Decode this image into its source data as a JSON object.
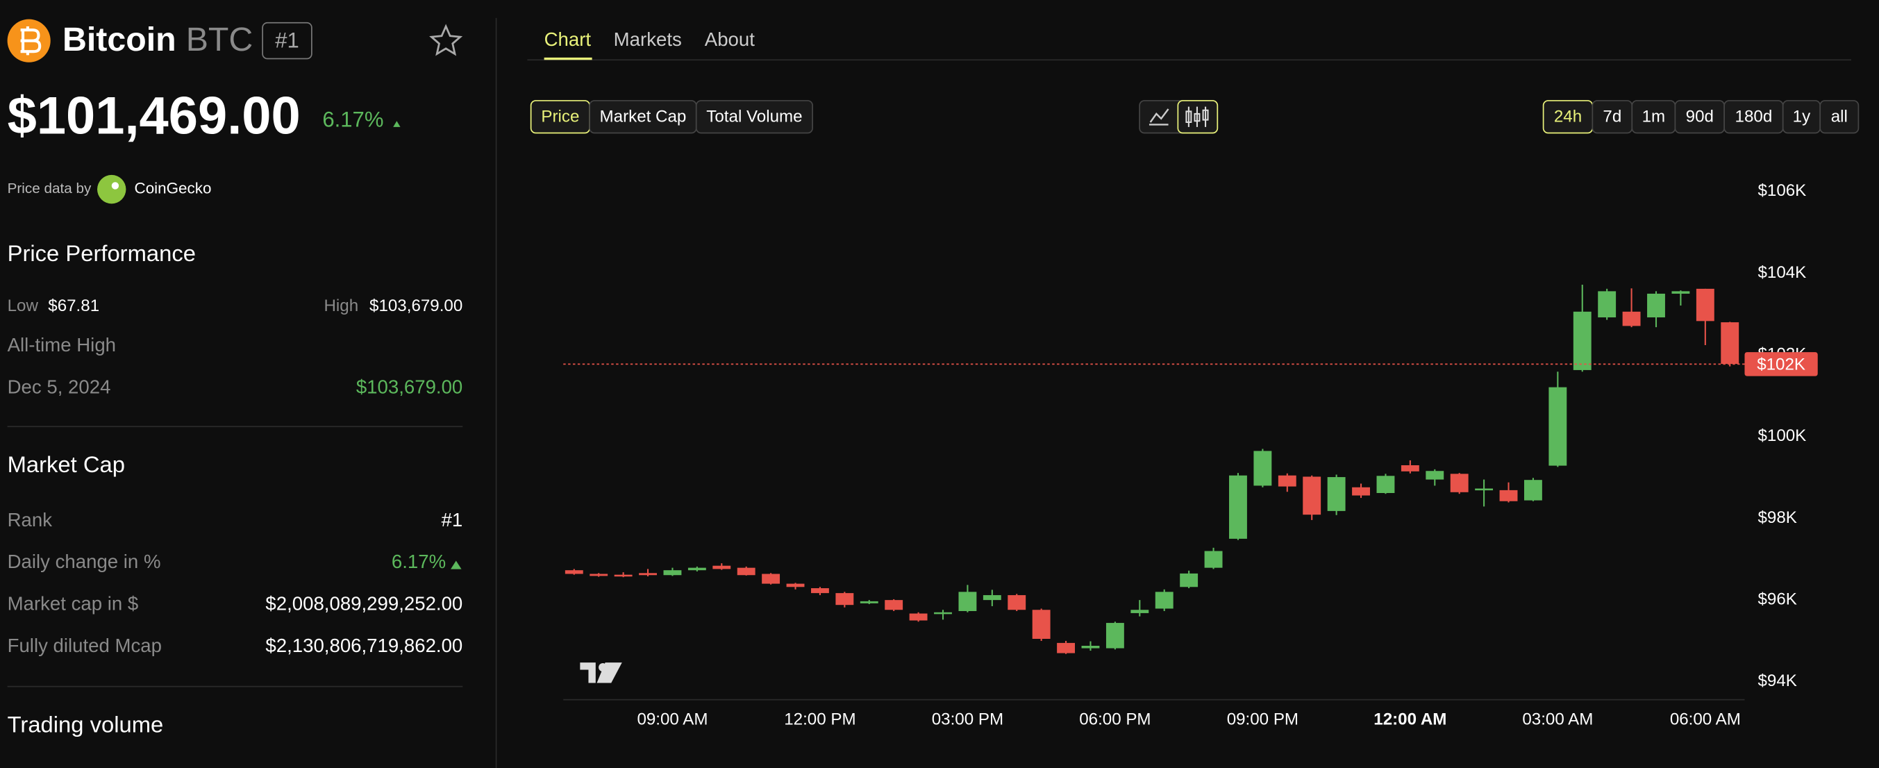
{
  "header": {
    "name": "Bitcoin",
    "symbol": "BTC",
    "rank_badge": "#1",
    "price": "$101,469.00",
    "change": "6.17%",
    "price_source_label": "Price data by",
    "price_source": "CoinGecko"
  },
  "price_performance": {
    "title": "Price Performance",
    "low_label": "Low",
    "low": "$67.81",
    "high_label": "High",
    "high": "$103,679.00",
    "ath_label": "All-time High",
    "ath_date": "Dec 5, 2024",
    "ath": "$103,679.00"
  },
  "market_cap": {
    "title": "Market Cap",
    "rows": [
      [
        "Rank",
        "#1"
      ],
      [
        "Daily change in %",
        "6.17%"
      ],
      [
        "Market cap in $",
        "$2,008,089,299,252.00"
      ],
      [
        "Fully diluted Mcap",
        "$2,130,806,719,862.00"
      ]
    ]
  },
  "trading_volume": {
    "title": "Trading volume"
  },
  "tabs": [
    "Chart",
    "Markets",
    "About"
  ],
  "metrics": [
    "Price",
    "Market Cap",
    "Total Volume"
  ],
  "ranges": [
    "24h",
    "7d",
    "1m",
    "90d",
    "180d",
    "1y",
    "all"
  ],
  "chart_data": {
    "type": "candlestick",
    "x": [
      7,
      7.5,
      8,
      8.5,
      9,
      9.5,
      10,
      10.5,
      11,
      11.5,
      12,
      12.5,
      13,
      13.5,
      14,
      14.5,
      15,
      15.5,
      16,
      16.5,
      17,
      17.5,
      18,
      18.5,
      19,
      19.5,
      20,
      20.5,
      21,
      21.5,
      22,
      22.5,
      23,
      23.5,
      24,
      24.5,
      25,
      25.5,
      26,
      26.5,
      27,
      27.5,
      28,
      28.5,
      29,
      29.5,
      30,
      30.5
    ],
    "open": [
      96730,
      96640,
      96620,
      96660,
      96610,
      96730,
      96840,
      96790,
      96640,
      96400,
      96290,
      96170,
      95920,
      96000,
      95670,
      95670,
      95730,
      96000,
      96120,
      95760,
      94950,
      94820,
      94820,
      95680,
      95790,
      96320,
      96790,
      97500,
      98800,
      99050,
      99020,
      98180,
      98760,
      98620,
      99300,
      98950,
      99090,
      98700,
      98690,
      98440,
      99290,
      101630,
      102920,
      103060,
      102920,
      103500,
      103620,
      102800
    ],
    "high": [
      96760,
      96660,
      96680,
      96760,
      96790,
      96820,
      96900,
      96820,
      96660,
      96420,
      96320,
      96200,
      96000,
      96020,
      95700,
      95760,
      96370,
      96250,
      96150,
      95790,
      95000,
      94990,
      95470,
      96000,
      96260,
      96720,
      97280,
      99110,
      99700,
      99100,
      99050,
      99070,
      98850,
      99090,
      99420,
      99200,
      99110,
      98950,
      98880,
      98990,
      101590,
      103720,
      103620,
      103630,
      103560,
      103580,
      103620,
      102810
    ],
    "low": [
      96620,
      96570,
      96560,
      96580,
      96590,
      96700,
      96740,
      96600,
      96380,
      96260,
      96120,
      95820,
      95900,
      95730,
      95470,
      95520,
      95700,
      95850,
      95730,
      95000,
      94680,
      94760,
      94790,
      95600,
      95730,
      96290,
      96760,
      97470,
      98760,
      98650,
      97960,
      98080,
      98500,
      98600,
      99100,
      98800,
      98600,
      98290,
      98390,
      98420,
      99260,
      101590,
      102860,
      102680,
      102680,
      103210,
      102240,
      101720
    ],
    "close": [
      96640,
      96590,
      96600,
      96610,
      96730,
      96790,
      96760,
      96610,
      96400,
      96320,
      96170,
      95880,
      95970,
      95760,
      95500,
      95700,
      96200,
      96120,
      95760,
      95050,
      94700,
      94880,
      95440,
      95760,
      96200,
      96650,
      97200,
      99050,
      99650,
      98780,
      98090,
      99010,
      98560,
      99040,
      99150,
      99160,
      98640,
      98730,
      98420,
      98940,
      101210,
      103060,
      103560,
      102710,
      103500,
      103560,
      102830,
      101780
    ],
    "up_color": "#5cb85c",
    "down_color": "#e8534a",
    "xlim": [
      6.78,
      30.8
    ],
    "xticks": [
      {
        "value": 9,
        "label": "09:00 AM"
      },
      {
        "value": 12,
        "label": "12:00 PM"
      },
      {
        "value": 15,
        "label": "03:00 PM"
      },
      {
        "value": 18,
        "label": "06:00 PM"
      },
      {
        "value": 21,
        "label": "09:00 PM"
      },
      {
        "value": 24,
        "label": "12:00 AM"
      },
      {
        "value": 27,
        "label": "03:00 AM"
      },
      {
        "value": 30,
        "label": "06:00 AM"
      }
    ],
    "ylim": [
      93560,
      106290
    ],
    "yticks": [
      {
        "value": 94000,
        "label": "$94K"
      },
      {
        "value": 96000,
        "label": "$96K"
      },
      {
        "value": 98000,
        "label": "$98K"
      },
      {
        "value": 100000,
        "label": "$100K"
      },
      {
        "value": 102000,
        "label": "$102K"
      },
      {
        "value": 104000,
        "label": "$104K"
      },
      {
        "value": 106000,
        "label": "$106K"
      }
    ],
    "current_price": {
      "value": 101776,
      "label": "$102K"
    }
  }
}
